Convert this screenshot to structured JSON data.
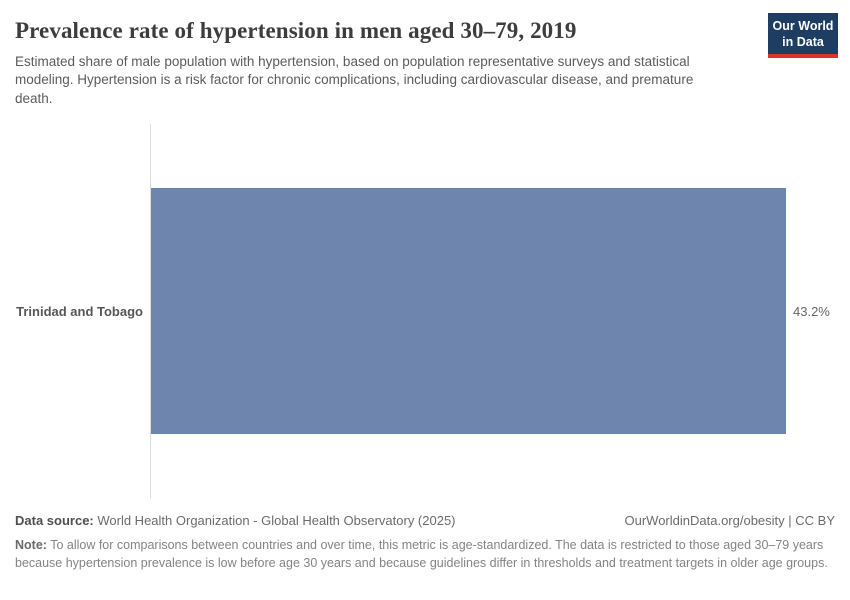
{
  "header": {
    "title": "Prevalence rate of hypertension in men aged 30–79, 2019",
    "subtitle": "Estimated share of male population with hypertension, based on population representative surveys and statistical modeling. Hypertension is a risk factor for chronic complications, including cardiovascular disease, and premature death.",
    "logo": {
      "line1": "Our World",
      "line2": "in Data",
      "bg_color": "#1d3d63",
      "accent_color": "#d8352e"
    }
  },
  "chart_data": {
    "type": "bar",
    "orientation": "horizontal",
    "title": "Prevalence rate of hypertension in men aged 30–79, 2019",
    "categories": [
      "Trinidad and Tobago"
    ],
    "values": [
      43.2
    ],
    "value_labels": [
      "43.2%"
    ],
    "xlabel": "",
    "ylabel": "",
    "xlim": [
      0,
      43.2
    ],
    "bar_color": "#6e85ae",
    "grid": false,
    "legend": false
  },
  "footer": {
    "data_source_label": "Data source:",
    "data_source_text": " World Health Organization - Global Health Observatory (2025)",
    "attribution": "OurWorldinData.org/obesity | CC BY",
    "note_label": "Note:",
    "note_text": " To allow for comparisons between countries and over time, this metric is age-standardized. The data is restricted to those aged 30–79 years because hypertension prevalence is low before age 30 years and because guidelines differ in thresholds and treatment targets in older age groups."
  }
}
